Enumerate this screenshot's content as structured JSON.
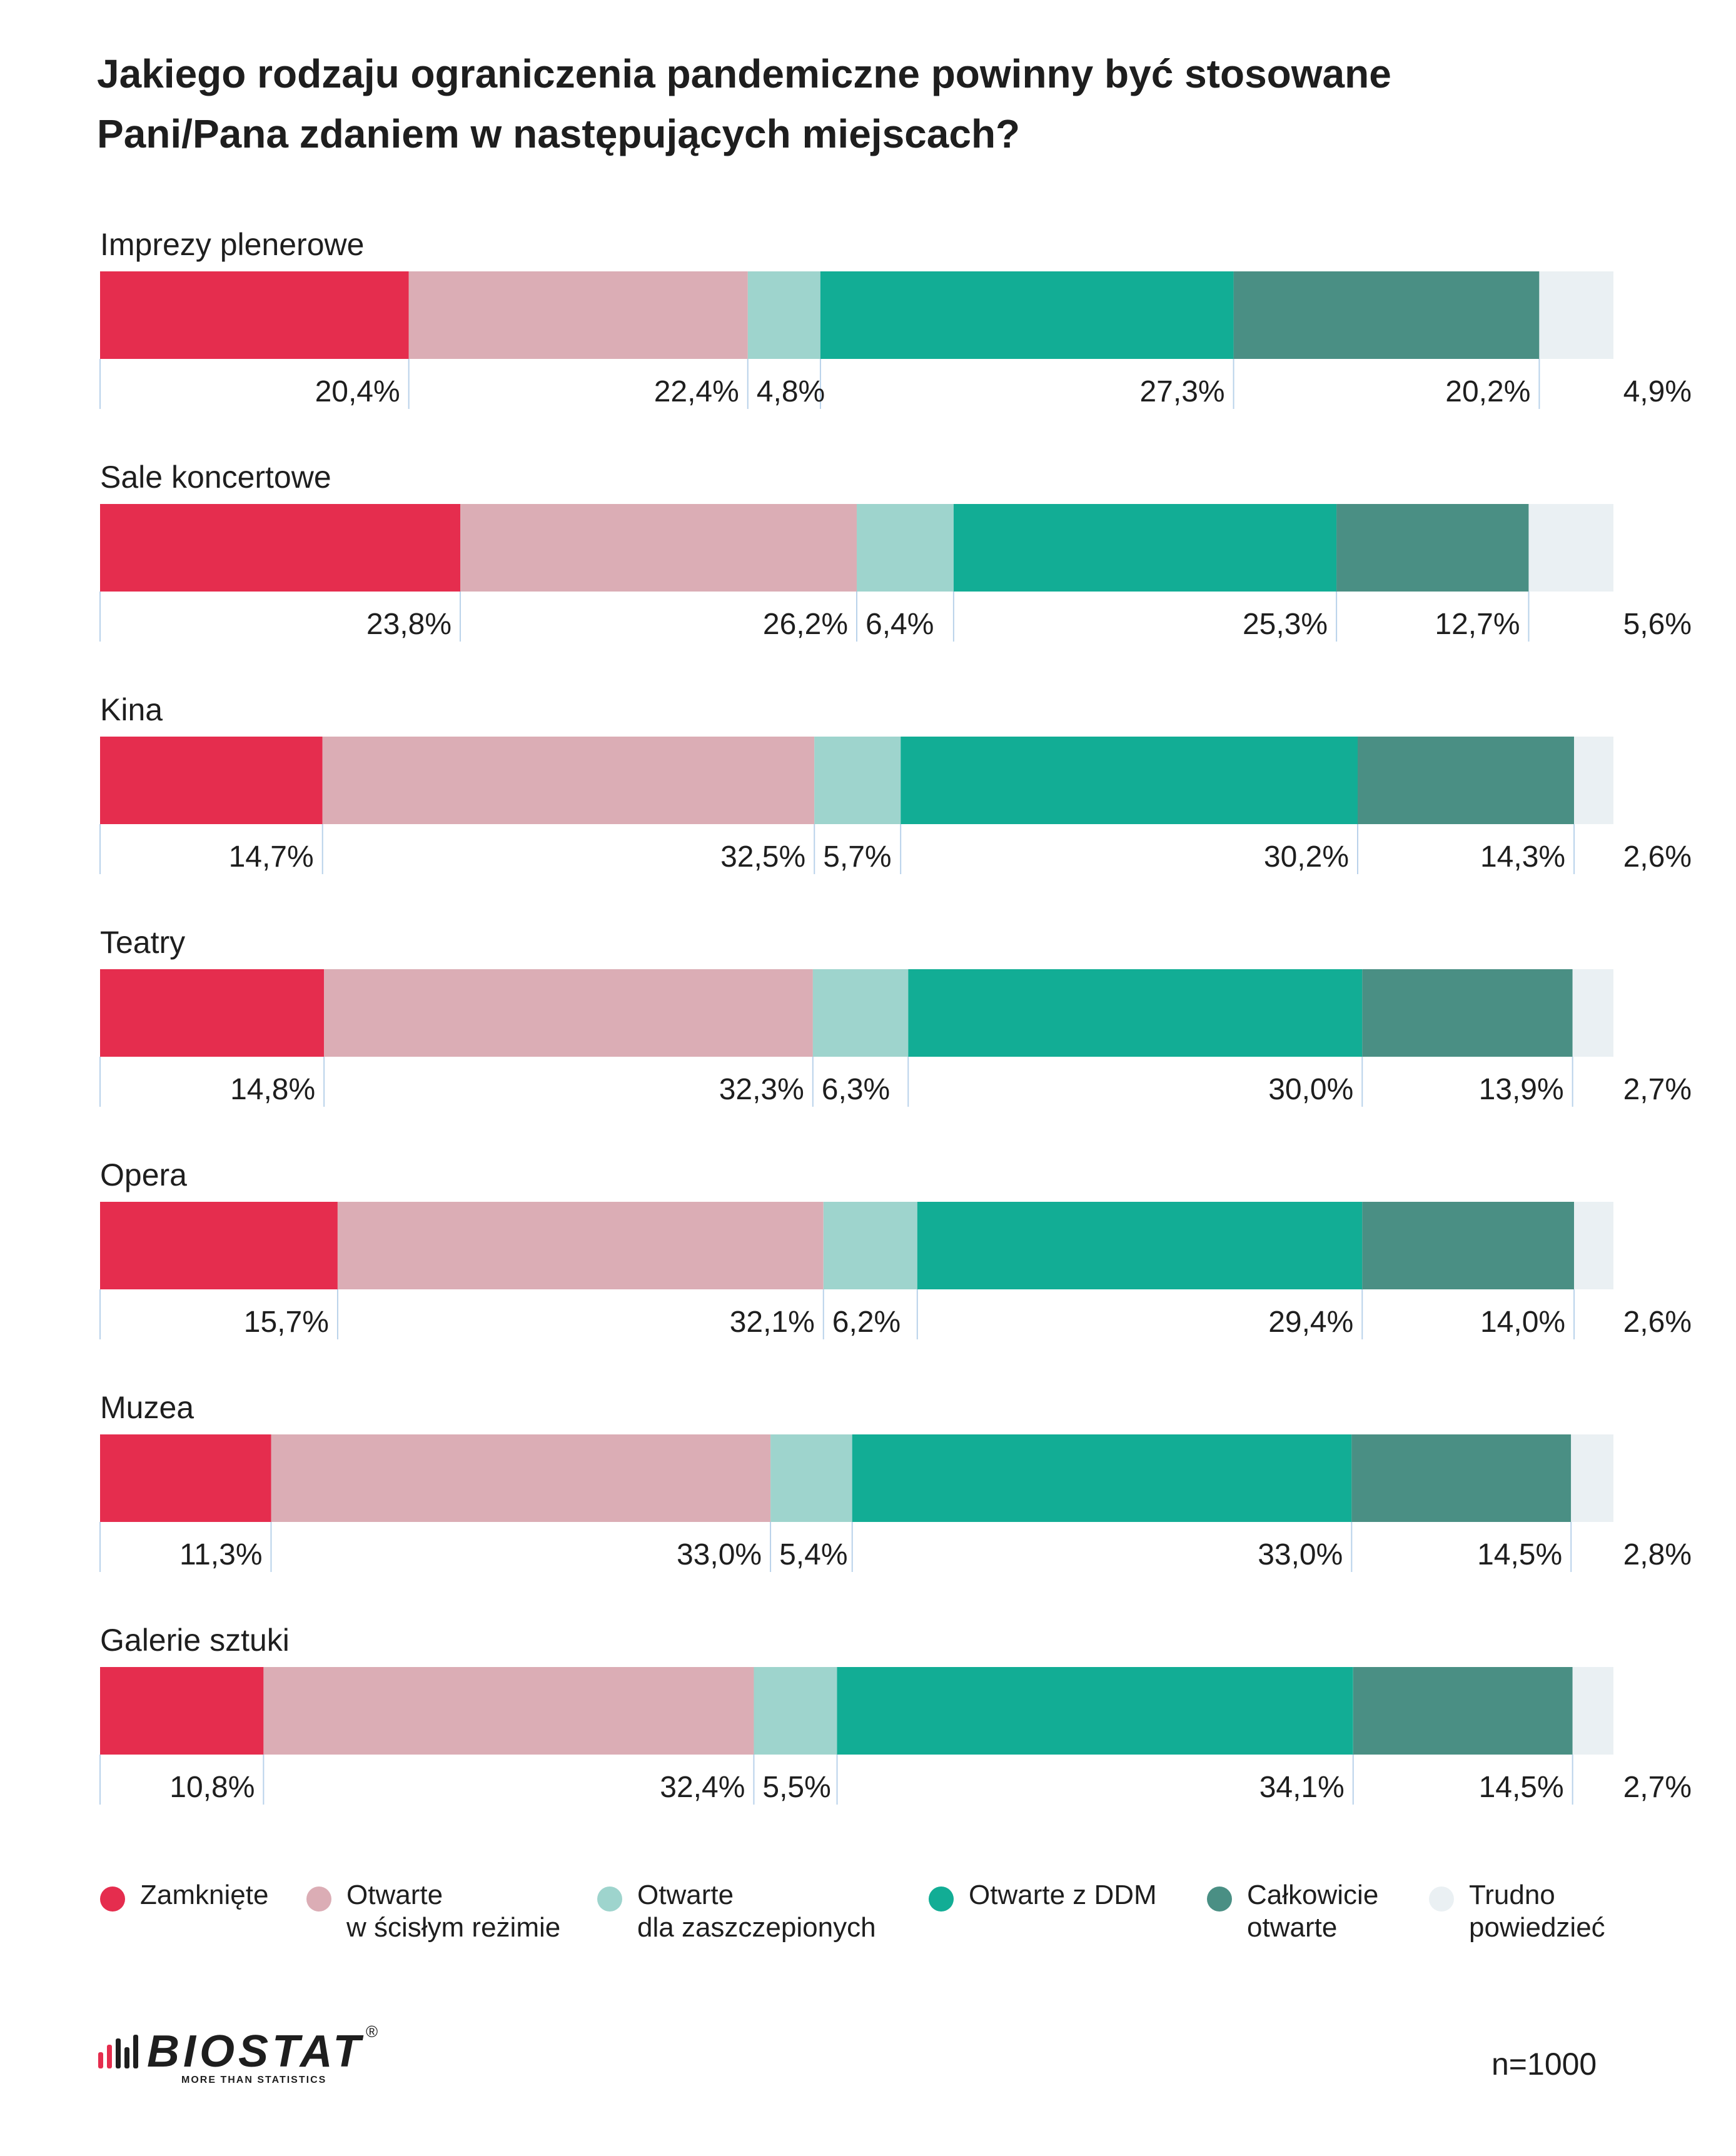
{
  "chart_data": {
    "type": "stacked-bar-horizontal",
    "title": [
      "Jakiego rodzaju ograniczenia pandemiczne powinny być stosowane",
      "Pani/Pana zdaniem w następujących miejscach?"
    ],
    "categories": [
      "Imprezy plenerowe",
      "Sale koncertowe",
      "Kina",
      "Teatry",
      "Opera",
      "Muzea",
      "Galerie sztuki"
    ],
    "series": [
      {
        "name": "Zamknięte",
        "color": "#E52D4E",
        "values": [
          20.4,
          23.8,
          14.7,
          14.8,
          15.7,
          11.3,
          10.8
        ],
        "labels": [
          "20,4%",
          "23,8%",
          "14,7%",
          "14,8%",
          "15,7%",
          "11,3%",
          "10,8%"
        ]
      },
      {
        "name": "Otwarte\nw ścisłym reżimie",
        "color": "#DBADB5",
        "values": [
          22.4,
          26.2,
          32.5,
          32.3,
          32.1,
          33.0,
          32.4
        ],
        "labels": [
          "22,4%",
          "26,2%",
          "32,5%",
          "32,3%",
          "32,1%",
          "33,0%",
          "32,4%"
        ]
      },
      {
        "name": "Otwarte\ndla zaszczepionych",
        "color": "#9ED4CD",
        "values": [
          4.8,
          6.4,
          5.7,
          6.3,
          6.2,
          5.4,
          5.5
        ],
        "labels": [
          "4,8%",
          "6,4%",
          "5,7%",
          "6,3%",
          "6,2%",
          "5,4%",
          "5,5%"
        ]
      },
      {
        "name": "Otwarte z DDM",
        "color": "#12AD95",
        "values": [
          27.3,
          25.3,
          30.2,
          30.0,
          29.4,
          33.0,
          34.1
        ],
        "labels": [
          "27,3%",
          "25,3%",
          "30,2%",
          "30,0%",
          "29,4%",
          "33,0%",
          "34,1%"
        ]
      },
      {
        "name": "Całkowicie\notwarte",
        "color": "#4A8F84",
        "values": [
          20.2,
          12.7,
          14.3,
          13.9,
          14.0,
          14.5,
          14.5
        ],
        "labels": [
          "20,2%",
          "12,7%",
          "14,3%",
          "13,9%",
          "14,0%",
          "14,5%",
          "14,5%"
        ]
      },
      {
        "name": "Trudno\npowiedzieć",
        "color": "#EAF0F3",
        "values": [
          4.9,
          5.6,
          2.6,
          2.7,
          2.6,
          2.8,
          2.7
        ],
        "labels": [
          "4,9%",
          "5,6%",
          "2,6%",
          "2,7%",
          "2,6%",
          "2,8%",
          "2,7%"
        ]
      }
    ]
  },
  "footer": {
    "brand": "BIOSTAT",
    "registered": "®",
    "tagline": "MORE THAN STATISTICS",
    "sample_note": "n=1000"
  },
  "colors": {
    "leader_line": "#B9D2EA",
    "text": "#1E1E1E",
    "logo_accent": "#E52D4E"
  }
}
